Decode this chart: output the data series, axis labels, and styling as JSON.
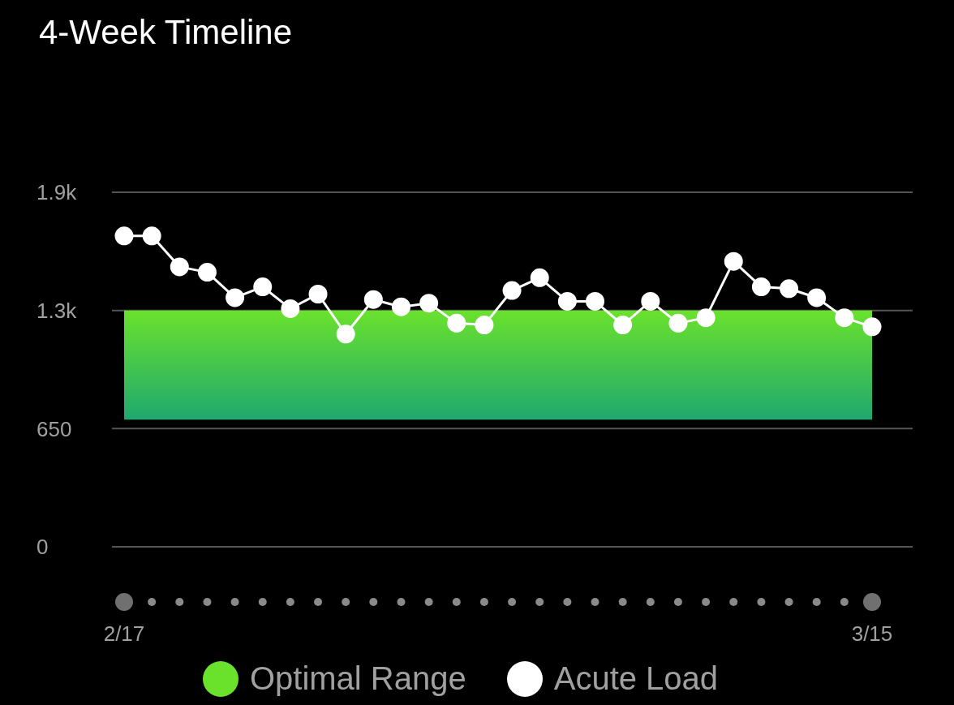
{
  "chart_data": {
    "type": "line",
    "title": "4-Week Timeline",
    "categories": [
      "2/17",
      null,
      null,
      null,
      null,
      null,
      null,
      null,
      null,
      null,
      null,
      null,
      null,
      null,
      null,
      null,
      null,
      null,
      null,
      null,
      null,
      null,
      null,
      null,
      null,
      null,
      null,
      "3/15"
    ],
    "series": [
      {
        "name": "Acute Load",
        "color": "#ffffff",
        "values": [
          1710,
          1710,
          1540,
          1510,
          1370,
          1430,
          1310,
          1390,
          1170,
          1360,
          1320,
          1340,
          1230,
          1220,
          1410,
          1480,
          1350,
          1350,
          1220,
          1350,
          1230,
          1260,
          1570,
          1430,
          1420,
          1370,
          1260,
          1210
        ]
      }
    ],
    "bands": [
      {
        "axis": "y",
        "from": 700,
        "to": 1300,
        "label": "Optimal Range",
        "color": "#6ae22c"
      }
    ],
    "ylim": [
      0,
      1950
    ],
    "yticks": [
      0,
      650,
      {
        "value": 1300,
        "label": "1.3k"
      },
      {
        "value": 1950,
        "label": "1.9k"
      }
    ],
    "grid": "y",
    "legend": "bottom",
    "marker": "circle",
    "line_style": "solid"
  }
}
